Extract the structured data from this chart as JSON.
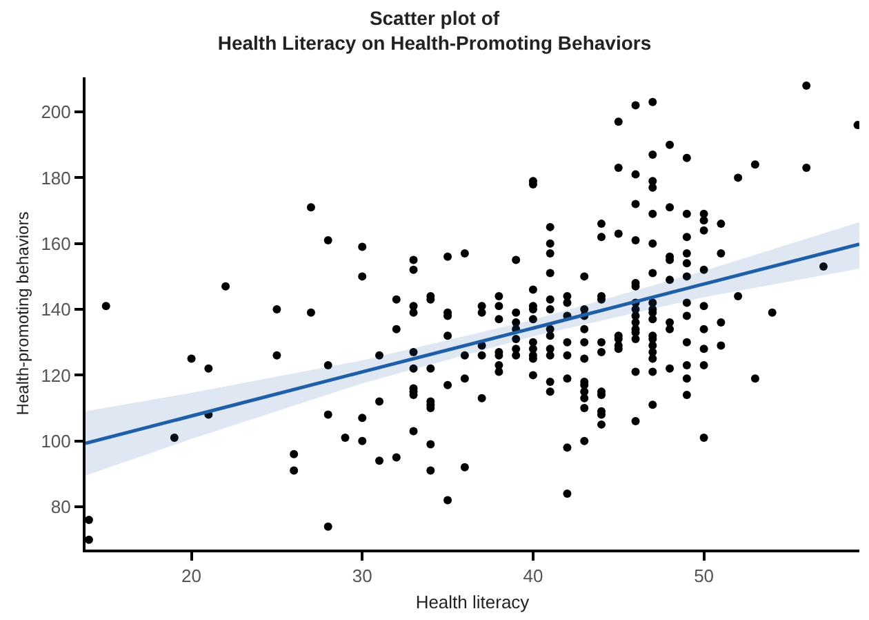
{
  "chart_data": {
    "type": "scatter",
    "title": "Scatter plot of\nHealth Literacy on Health-Promoting Behaviors",
    "xlabel": "Health literacy",
    "ylabel": "Health-promoting behaviors",
    "xlim": [
      13.8,
      59.1
    ],
    "ylim": [
      67,
      210.5
    ],
    "xticks": [
      20,
      30,
      40,
      50
    ],
    "yticks": [
      80,
      100,
      120,
      140,
      160,
      180,
      200
    ],
    "marker": "circle",
    "series": [
      {
        "color": "#000000",
        "x": [
          14,
          14,
          15,
          19,
          20,
          21,
          21,
          22,
          25,
          25,
          26,
          26,
          27,
          27,
          28,
          28,
          28,
          28,
          29,
          30,
          30,
          30,
          30,
          31,
          31,
          31,
          32,
          32,
          32,
          33,
          33,
          33,
          33,
          33,
          33,
          33,
          33,
          33,
          33,
          34,
          34,
          34,
          34,
          34,
          34,
          34,
          34,
          35,
          35,
          35,
          35,
          35,
          35,
          36,
          36,
          36,
          36,
          37,
          37,
          37,
          37,
          37,
          38,
          38,
          38,
          38,
          38,
          38,
          38,
          39,
          39,
          39,
          39,
          39,
          39,
          39,
          40,
          40,
          40,
          40,
          40,
          40,
          40,
          40,
          40,
          40,
          40,
          41,
          41,
          41,
          41,
          41,
          41,
          41,
          41,
          41,
          41,
          41,
          41,
          42,
          42,
          42,
          42,
          42,
          42,
          42,
          42,
          43,
          43,
          43,
          43,
          43,
          43,
          43,
          43,
          43,
          43,
          43,
          43,
          44,
          44,
          44,
          44,
          44,
          44,
          44,
          44,
          44,
          44,
          44,
          45,
          45,
          45,
          45,
          45,
          45,
          45,
          46,
          46,
          46,
          46,
          46,
          46,
          46,
          46,
          46,
          46,
          46,
          46,
          46,
          46,
          46,
          47,
          47,
          47,
          47,
          47,
          47,
          47,
          47,
          47,
          47,
          47,
          47,
          47,
          47,
          47,
          47,
          47,
          47,
          48,
          48,
          48,
          48,
          48,
          48,
          48,
          48,
          49,
          49,
          49,
          49,
          49,
          49,
          49,
          49,
          49,
          49,
          49,
          49,
          50,
          50,
          50,
          50,
          50,
          50,
          50,
          50,
          50,
          51,
          51,
          51,
          51,
          52,
          52,
          53,
          53,
          54,
          56,
          56,
          57,
          59
        ],
        "values": [
          76,
          70,
          141,
          101,
          125,
          122,
          108,
          147,
          140,
          126,
          96,
          91,
          171,
          139,
          161,
          123,
          108,
          74,
          101,
          159,
          150,
          107,
          100,
          126,
          112,
          94,
          143,
          134,
          95,
          155,
          152,
          141,
          139,
          127,
          122,
          116,
          115,
          114,
          103,
          144,
          143,
          122,
          112,
          111,
          110,
          99,
          91,
          156,
          139,
          138,
          132,
          117,
          82,
          157,
          126,
          119,
          92,
          141,
          139,
          129,
          126,
          113,
          144,
          141,
          137,
          127,
          126,
          123,
          121,
          155,
          139,
          136,
          134,
          131,
          128,
          126,
          179,
          178,
          146,
          141,
          140,
          137,
          130,
          128,
          126,
          125,
          120,
          165,
          160,
          157,
          151,
          143,
          140,
          134,
          132,
          128,
          126,
          118,
          115,
          144,
          142,
          138,
          130,
          126,
          119,
          98,
          84,
          150,
          140,
          138,
          134,
          130,
          125,
          118,
          117,
          115,
          113,
          110,
          100,
          166,
          162,
          144,
          143,
          130,
          127,
          115,
          114,
          109,
          108,
          105,
          197,
          183,
          163,
          132,
          131,
          129,
          128,
          202,
          181,
          172,
          161,
          148,
          147,
          142,
          140,
          138,
          136,
          134,
          133,
          131,
          121,
          106,
          203,
          187,
          179,
          177,
          169,
          160,
          151,
          142,
          140,
          139,
          137,
          132,
          131,
          129,
          127,
          125,
          121,
          111,
          190,
          171,
          156,
          155,
          149,
          136,
          134,
          122,
          186,
          169,
          162,
          157,
          154,
          150,
          142,
          138,
          130,
          123,
          119,
          114,
          169,
          167,
          164,
          152,
          141,
          134,
          128,
          123,
          101,
          166,
          157,
          136,
          129,
          180,
          144,
          184,
          119,
          139,
          208,
          183,
          153,
          196
        ]
      },
      {
        "type": "line",
        "color": "#1f5fa8",
        "marker": "none",
        "line_style": "solid",
        "x": [
          13.8,
          20,
          30,
          40,
          50,
          59.1
        ],
        "values": [
          99.3,
          107.6,
          121,
          134.3,
          147.7,
          159.8
        ],
        "lower": [
          89.5,
          100.6,
          117.5,
          131.8,
          143.7,
          152.4
        ],
        "upper": [
          109,
          114.6,
          124.5,
          136.8,
          151.7,
          166.5
        ]
      }
    ]
  }
}
